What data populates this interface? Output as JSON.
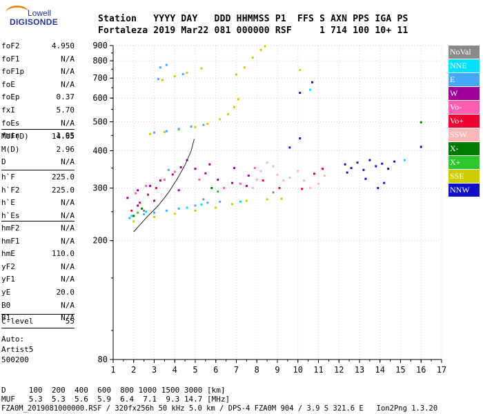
{
  "logo": {
    "line1": "Lowell",
    "line2": "DIGISONDE"
  },
  "header": {
    "row1": "Station   YYYY DAY   DDD HHMMSS P1  FFS S AXN PPS IGA PS",
    "row2": "Fortaleza 2019 Mar22 081 000000 RSF     1 714 100 10+ 11"
  },
  "params": {
    "group1": [
      {
        "label": "foF2",
        "value": "4.950"
      },
      {
        "label": "foF1",
        "value": "N/A"
      },
      {
        "label": "foF1p",
        "value": "N/A"
      },
      {
        "label": "foE",
        "value": "N/A"
      },
      {
        "label": "foEp",
        "value": "0.37"
      },
      {
        "label": "fxI",
        "value": "5.70"
      },
      {
        "label": "foEs",
        "value": "N/A"
      },
      {
        "label": "fmin",
        "value": "1.95"
      }
    ],
    "group2": [
      {
        "label": "MUF(D)",
        "value": "14.65"
      },
      {
        "label": "M(D)",
        "value": "2.96"
      },
      {
        "label": "D",
        "value": "N/A"
      }
    ],
    "group3": [
      {
        "label": "h`F",
        "value": "225.0"
      },
      {
        "label": "h`F2",
        "value": "225.0"
      },
      {
        "label": "h`E",
        "value": "N/A"
      },
      {
        "label": "h`Es",
        "value": "N/A"
      }
    ],
    "group4": [
      {
        "label": "hmF2",
        "value": "N/A"
      },
      {
        "label": "hmF1",
        "value": "N/A"
      },
      {
        "label": "hmE",
        "value": "110.0"
      },
      {
        "label": "yF2",
        "value": "N/A"
      },
      {
        "label": "yF1",
        "value": "N/A"
      },
      {
        "label": "yE",
        "value": "20.0"
      },
      {
        "label": "B0",
        "value": "N/A"
      },
      {
        "label": "B1",
        "value": "N/A"
      }
    ],
    "group5": [
      {
        "label": "C-level",
        "value": "55"
      }
    ]
  },
  "auto": {
    "line1": "Auto:",
    "line2": "Artist5",
    "line3": "500200"
  },
  "legend": [
    {
      "label": "NoVal",
      "color": "#8a8a8a"
    },
    {
      "label": "NNE",
      "color": "#00e0ff"
    },
    {
      "label": "E",
      "color": "#46a8ff"
    },
    {
      "label": "W",
      "color": "#a0009a"
    },
    {
      "label": "Vo-",
      "color": "#ff5eb0"
    },
    {
      "label": "Vo+",
      "color": "#ee0030"
    },
    {
      "label": "SSW",
      "color": "#ffb6b6"
    },
    {
      "label": "X-",
      "color": "#007a00"
    },
    {
      "label": "X+",
      "color": "#2ec82e"
    },
    {
      "label": "SSE",
      "color": "#cccc00"
    },
    {
      "label": "NNW",
      "color": "#1010c8"
    }
  ],
  "footer": {
    "line1": "D     100  200  400  600  800 1000 1500 3000 [km]",
    "line2": "MUF   5.3  5.3  5.6  5.9  6.4  7.1  9.3 14.7 [MHz]",
    "line3": "FZA0M_2019081000000.RSF / 320fx256h 50 kHz 5.0 km / DPS-4 FZA0M 904 / 3.9 S 321.6 E   Ion2Png 1.3.20"
  },
  "chart_data": {
    "type": "scatter",
    "title": "",
    "xlabel": "",
    "ylabel": "",
    "xlim": [
      1,
      17
    ],
    "ylim": [
      80,
      900
    ],
    "y_scale": "log",
    "x_ticks": [
      "1",
      "2",
      "3",
      "4",
      "5",
      "6",
      "7",
      "8",
      "9",
      "10",
      "11",
      "12",
      "13",
      "14",
      "15",
      "16",
      "17"
    ],
    "y_ticks": [
      "80",
      "200",
      "300",
      "400",
      "500",
      "600",
      "700",
      "800",
      "900"
    ],
    "grid": true,
    "series": [
      {
        "name": "SSE",
        "color": "#cccc00",
        "points": [
          [
            2.0,
            232
          ],
          [
            3.0,
            240
          ],
          [
            4.0,
            246
          ],
          [
            5.0,
            252
          ],
          [
            6.0,
            258
          ],
          [
            6.8,
            265
          ],
          [
            7.5,
            272
          ],
          [
            8.5,
            275
          ],
          [
            9.2,
            276
          ],
          [
            2.8,
            455
          ],
          [
            3.5,
            462
          ],
          [
            4.2,
            470
          ],
          [
            5.0,
            480
          ],
          [
            5.6,
            492
          ],
          [
            6.2,
            510
          ],
          [
            6.6,
            530
          ],
          [
            6.9,
            560
          ],
          [
            7.1,
            595
          ],
          [
            3.4,
            690
          ],
          [
            4.0,
            710
          ],
          [
            4.6,
            730
          ],
          [
            5.3,
            755
          ],
          [
            7.0,
            720
          ],
          [
            7.4,
            760
          ],
          [
            7.8,
            820
          ],
          [
            8.2,
            870
          ],
          [
            8.4,
            895
          ],
          [
            10.1,
            745
          ]
        ]
      },
      {
        "name": "E",
        "color": "#46a8ff",
        "points": [
          [
            1.8,
            238
          ],
          [
            2.5,
            245
          ],
          [
            3.0,
            248
          ],
          [
            3.6,
            252
          ],
          [
            4.2,
            256
          ],
          [
            5.0,
            262
          ],
          [
            5.6,
            268
          ],
          [
            6.2,
            270
          ],
          [
            3.0,
            460
          ],
          [
            3.6,
            465
          ],
          [
            4.2,
            473
          ],
          [
            4.8,
            482
          ],
          [
            5.4,
            488
          ],
          [
            3.3,
            760
          ],
          [
            3.6,
            775
          ],
          [
            3.2,
            695
          ],
          [
            4.4,
            722
          ],
          [
            3.7,
            345
          ]
        ]
      },
      {
        "name": "W",
        "color": "#a0009a",
        "points": [
          [
            1.7,
            278
          ],
          [
            2.2,
            295
          ],
          [
            2.8,
            305
          ],
          [
            3.3,
            318
          ],
          [
            3.9,
            333
          ],
          [
            4.3,
            352
          ],
          [
            4.6,
            372
          ],
          [
            5.0,
            348
          ],
          [
            5.5,
            336
          ],
          [
            6.1,
            320
          ],
          [
            6.8,
            312
          ],
          [
            7.5,
            305
          ],
          [
            2.2,
            262
          ],
          [
            3.0,
            272
          ],
          [
            4.2,
            295
          ],
          [
            5.7,
            360
          ],
          [
            6.9,
            350
          ],
          [
            7.6,
            330
          ]
        ]
      },
      {
        "name": "SSW",
        "color": "#ffb6b6",
        "points": [
          [
            7.8,
            300
          ],
          [
            8.0,
            320
          ],
          [
            8.2,
            342
          ],
          [
            8.5,
            365
          ],
          [
            8.8,
            355
          ],
          [
            9.0,
            332
          ],
          [
            9.3,
            318
          ],
          [
            9.6,
            325
          ],
          [
            10.0,
            342
          ],
          [
            10.3,
            318
          ],
          [
            10.6,
            300
          ],
          [
            11.0,
            310
          ],
          [
            11.3,
            330
          ]
        ]
      },
      {
        "name": "Vo+",
        "color": "#ee0030",
        "points": [
          [
            1.9,
            252
          ],
          [
            2.3,
            268
          ],
          [
            2.7,
            285
          ],
          [
            3.1,
            300
          ],
          [
            8.3,
            318
          ],
          [
            9.1,
            300
          ],
          [
            10.2,
            298
          ],
          [
            10.8,
            335
          ],
          [
            11.2,
            348
          ]
        ]
      },
      {
        "name": "Vo-",
        "color": "#ff5eb0",
        "points": [
          [
            2.1,
            288
          ],
          [
            2.6,
            305
          ],
          [
            3.5,
            320
          ],
          [
            4.0,
            340
          ],
          [
            5.2,
            320
          ],
          [
            6.4,
            300
          ],
          [
            7.2,
            310
          ],
          [
            7.9,
            350
          ]
        ]
      },
      {
        "name": "NNE",
        "color": "#00e0ff",
        "points": [
          [
            1.9,
            242
          ],
          [
            2.6,
            250
          ],
          [
            4.6,
            258
          ],
          [
            5.3,
            264
          ],
          [
            7.2,
            270
          ],
          [
            10.6,
            640
          ],
          [
            15.2,
            372
          ]
        ]
      },
      {
        "name": "NNW",
        "color": "#1010c8",
        "points": [
          [
            12.3,
            360
          ],
          [
            12.6,
            350
          ],
          [
            12.9,
            365
          ],
          [
            13.2,
            345
          ],
          [
            13.5,
            372
          ],
          [
            13.8,
            355
          ],
          [
            14.1,
            362
          ],
          [
            14.4,
            348
          ],
          [
            14.7,
            368
          ],
          [
            12.4,
            338
          ],
          [
            13.3,
            322
          ],
          [
            14.2,
            312
          ],
          [
            9.6,
            410
          ],
          [
            10.1,
            440
          ],
          [
            10.7,
            678
          ],
          [
            10.1,
            625
          ],
          [
            13.9,
            300
          ],
          [
            16.0,
            412
          ]
        ]
      },
      {
        "name": "X-",
        "color": "#007a00",
        "points": [
          [
            2.0,
            242
          ],
          [
            2.4,
            256
          ],
          [
            5.8,
            300
          ],
          [
            16.0,
            498
          ]
        ]
      },
      {
        "name": "X+",
        "color": "#2ec82e",
        "points": [
          [
            2.2,
            248
          ],
          [
            6.1,
            292
          ]
        ]
      },
      {
        "name": "NoVal",
        "color": "#8a8a8a",
        "points": [
          [
            2.5,
            252
          ],
          [
            5.4,
            275
          ],
          [
            8.8,
            290
          ]
        ]
      }
    ],
    "trace": [
      [
        2.0,
        214
      ],
      [
        2.3,
        226
      ],
      [
        2.7,
        242
      ],
      [
        3.2,
        262
      ],
      [
        3.7,
        290
      ],
      [
        4.1,
        320
      ],
      [
        4.5,
        358
      ],
      [
        4.8,
        400
      ],
      [
        4.95,
        438
      ]
    ]
  }
}
